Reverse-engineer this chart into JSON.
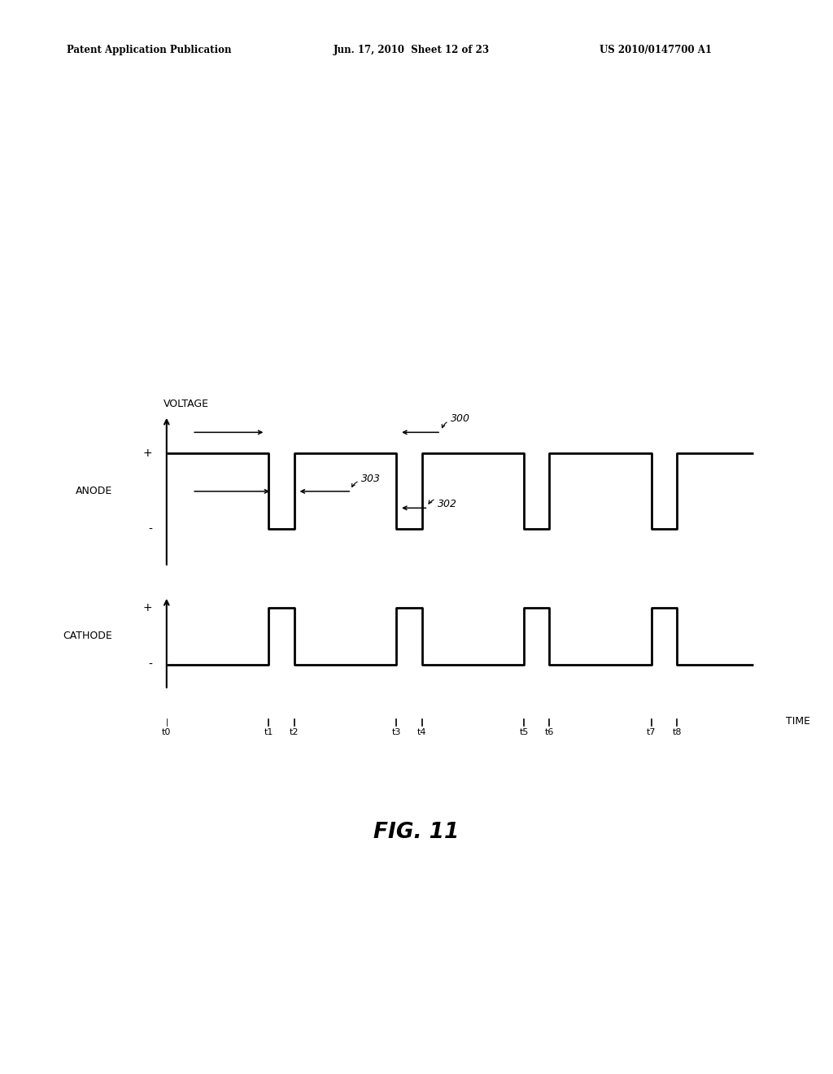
{
  "header_left": "Patent Application Publication",
  "header_mid": "Jun. 17, 2010  Sheet 12 of 23",
  "header_right": "US 2010/0147700 A1",
  "figure_label": "FIG. 11",
  "background_color": "#ffffff",
  "line_color": "#000000",
  "time_labels": [
    "t0",
    "t1",
    "t2",
    "t3",
    "t4",
    "t5",
    "t6",
    "t7",
    "t8"
  ],
  "anode_label": "ANODE",
  "cathode_label": "CATHODE",
  "voltage_label": "VOLTAGE",
  "annotation_300": "300",
  "annotation_303": "303",
  "annotation_302": "302",
  "t0": 0.0,
  "t1": 1.6,
  "t2": 2.0,
  "t3": 3.6,
  "t4": 4.0,
  "t5": 5.6,
  "t6": 6.0,
  "t7": 7.6,
  "t8": 8.0,
  "tend": 9.2,
  "T": 9.4
}
